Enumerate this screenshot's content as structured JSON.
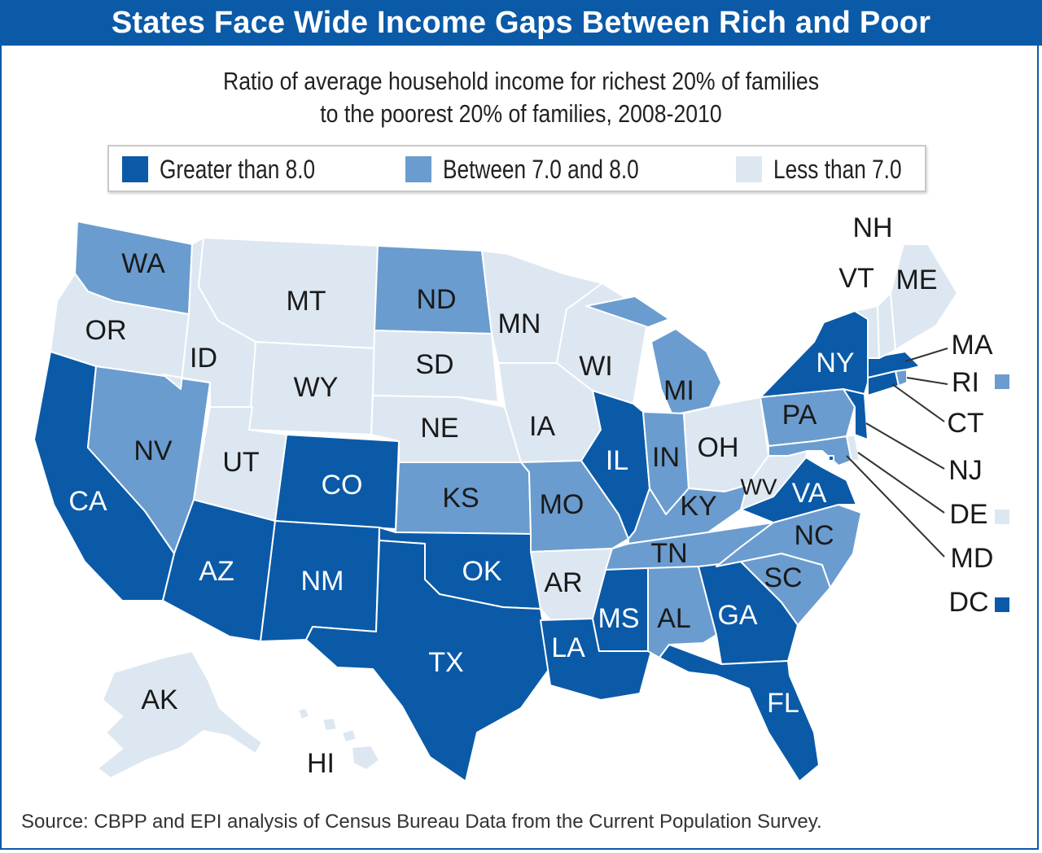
{
  "title": "States Face Wide Income Gaps Between Rich and Poor",
  "subtitle_line1": "Ratio of average household income for richest 20% of families",
  "subtitle_line2": "to the poorest 20% of families, 2008-2010",
  "legend": [
    {
      "label": "Greater than 8.0",
      "category": "high"
    },
    {
      "label": "Between 7.0 and 8.0",
      "category": "mid"
    },
    {
      "label": "Less than 7.0",
      "category": "low"
    }
  ],
  "colors": {
    "high": "#0a5aa8",
    "mid": "#6a9ccf",
    "low": "#dde7f1",
    "border": "#0a5aa8"
  },
  "states": {
    "WA": "mid",
    "OR": "low",
    "CA": "high",
    "NV": "mid",
    "ID": "low",
    "MT": "low",
    "WY": "low",
    "UT": "low",
    "AZ": "high",
    "CO": "high",
    "NM": "high",
    "ND": "mid",
    "SD": "low",
    "NE": "low",
    "KS": "mid",
    "OK": "high",
    "TX": "high",
    "MN": "low",
    "IA": "low",
    "MO": "mid",
    "AR": "low",
    "LA": "high",
    "WI": "low",
    "IL": "high",
    "MI": "mid",
    "IN": "mid",
    "OH": "low",
    "KY": "mid",
    "TN": "mid",
    "MS": "high",
    "AL": "mid",
    "GA": "high",
    "FL": "high",
    "SC": "mid",
    "NC": "mid",
    "VA": "high",
    "WV": "low",
    "PA": "mid",
    "NY": "high",
    "ME": "low",
    "NH": "low",
    "VT": "low",
    "MA": "high",
    "RI": "mid",
    "CT": "high",
    "NJ": "high",
    "DE": "low",
    "MD": "mid",
    "DC": "high",
    "AK": "low",
    "HI": "low"
  },
  "source": "Source: CBPP and EPI analysis of Census Bureau Data from the Current Population Survey."
}
